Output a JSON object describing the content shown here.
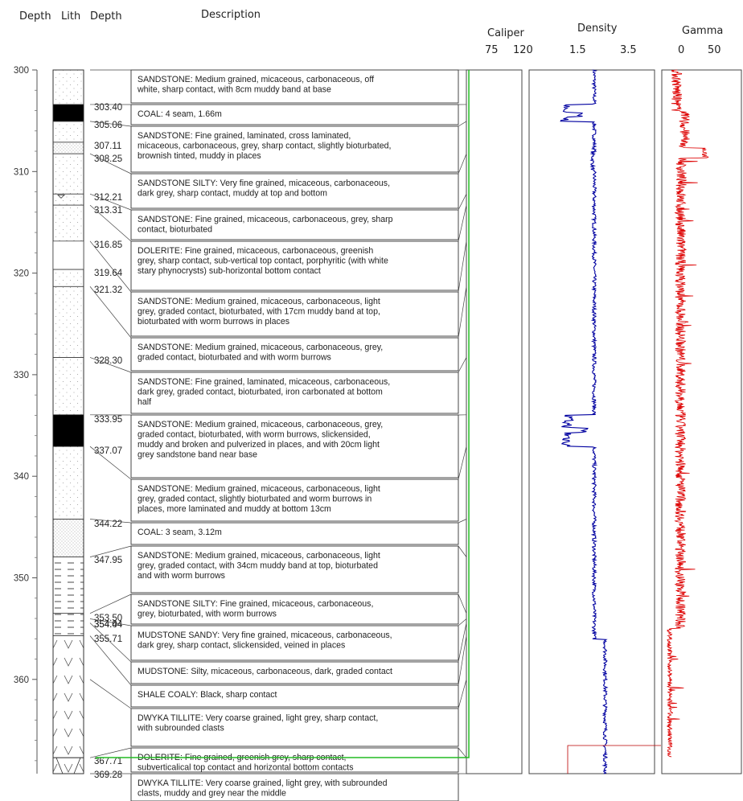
{
  "headers": {
    "depth": "Depth",
    "lith": "Lith",
    "depth2": "Depth",
    "description": "Description",
    "caliper": "Caliper",
    "density": "Density",
    "gamma": "Gamma"
  },
  "scales": {
    "caliper": [
      "75",
      "120"
    ],
    "density": [
      "1.5",
      "3.5"
    ],
    "gamma": [
      "0",
      "50"
    ]
  },
  "depth_axis": {
    "min": 300,
    "max": 369.3,
    "ticks": [
      "300",
      "310",
      "320",
      "330",
      "340",
      "350",
      "360"
    ]
  },
  "units": [
    {
      "text": [
        "SANDSTONE: Medium grained, micaceous, carbonaceous, off",
        "white, sharp contact, with 8cm muddy band at base"
      ]
    },
    {
      "text": [
        "COAL: 4 seam, 1.66m"
      ]
    },
    {
      "text": [
        "SANDSTONE: Fine grained, laminated, cross laminated,",
        "micaceous, carbonaceous, grey, sharp contact, slightly bioturbated,",
        " brownish tinted,  muddy in places"
      ]
    },
    {
      "text": [
        "SANDSTONE SILTY: Very fine grained, micaceous, carbonaceous,",
        "dark grey, sharp contact, muddy at top and bottom"
      ]
    },
    {
      "text": [
        "SANDSTONE: Fine grained, micaceous, carbonaceous, grey, sharp",
        "contact, bioturbated"
      ]
    },
    {
      "text": [
        "DOLERITE: Fine grained, micaceous, carbonaceous, greenish",
        "grey, sharp contact, sub-vertical top contact,  porphyritic (with white",
        "stary phynocrysts) sub-horizontal bottom contact"
      ]
    },
    {
      "text": [
        "SANDSTONE: Medium grained, micaceous, carbonaceous, light",
        "grey, graded contact, bioturbated,  with 17cm muddy band at top,",
        "bioturbated with worm burrows in places"
      ]
    },
    {
      "text": [
        "SANDSTONE: Medium grained, micaceous, carbonaceous, grey,",
        "graded contact, bioturbated and with worm burrows"
      ]
    },
    {
      "text": [
        "SANDSTONE: Fine grained, laminated, micaceous, carbonaceous,",
        "dark grey, graded contact, bioturbated,  iron carbonated at bottom",
        "half"
      ]
    },
    {
      "text": [
        "SANDSTONE: Medium grained, micaceous, carbonaceous, grey,",
        "graded contact, bioturbated, with worm burrows, slickensided,",
        "muddy and broken and pulverized in places, and with 20cm light",
        "grey sandstone band near base"
      ]
    },
    {
      "text": [
        "SANDSTONE: Medium grained, micaceous, carbonaceous, light",
        "grey, graded contact, slightly bioturbated and worm burrows in",
        "places, more laminated and muddy at bottom 13cm"
      ]
    },
    {
      "text": [
        "COAL: 3 seam, 3.12m"
      ]
    },
    {
      "text": [
        "SANDSTONE: Medium grained, micaceous, carbonaceous, light",
        "grey, graded contact, with 34cm muddy band at top, bioturbated",
        "and with worm burrows"
      ]
    },
    {
      "text": [
        "SANDSTONE SILTY: Fine grained, micaceous, carbonaceous,",
        "grey, bioturbated,  with worm burrows"
      ]
    },
    {
      "text": [
        "MUDSTONE SANDY: Very fine grained, micaceous, carbonaceous,",
        "dark grey, sharp contact, slickensided, veined in places"
      ]
    },
    {
      "text": [
        "MUDSTONE: Silty, micaceous, carbonaceous, dark, graded contact"
      ]
    },
    {
      "text": [
        "SHALE COALY: Black, sharp contact"
      ]
    },
    {
      "text": [
        "DWYKA TILLITE: Very coarse grained, light grey, sharp contact,",
        "with subrounded clasts"
      ]
    },
    {
      "text": [
        "DOLERITE: Fine grained, greenish grey, sharp contact,",
        "subverticalical top contact and horizontal bottom contacts"
      ]
    },
    {
      "text": [
        "DWYKA TILLITE: Very coarse grained, light grey, with subrounded",
        "clasts, muddy and grey near the middle"
      ]
    }
  ],
  "depth_labels": [
    "303.40",
    "305.06",
    "307.11",
    "308.25",
    "312.21",
    "313.31",
    "316.85",
    "319.64",
    "321.32",
    "328.30",
    "333.95",
    "337.07",
    "344.22",
    "347.95",
    "353.50",
    "354.04",
    "354.44",
    "355.71",
    "367.71",
    "369.28"
  ],
  "chart_data": {
    "type": "line",
    "x_label": "Depth",
    "caliper": {
      "name": "Caliper",
      "range": [
        75,
        120
      ],
      "color": "#22bb22",
      "value_above_367_7": 77,
      "jump_at_depth": 367.7
    },
    "density": {
      "name": "Density",
      "range": [
        1.5,
        3.5
      ],
      "color": "#0000a0",
      "baseline": 2.5,
      "coal_1": {
        "depth_range": [
          303.4,
          305.06
        ],
        "min_value": 1.4
      },
      "coal_2": {
        "depth_range": [
          333.95,
          337.07
        ],
        "min_value": 1.45
      }
    },
    "gamma": {
      "name": "Gamma",
      "range": [
        0,
        50
      ],
      "color": "#dd0000",
      "baseline": 25,
      "peak_depth": 308.2,
      "peak_value": 55,
      "lower_value_below_355": 5
    }
  },
  "colors": {
    "caliper": "#22bb22",
    "density": "#0000a0",
    "gamma": "#dd0000",
    "coal": "#000000"
  }
}
